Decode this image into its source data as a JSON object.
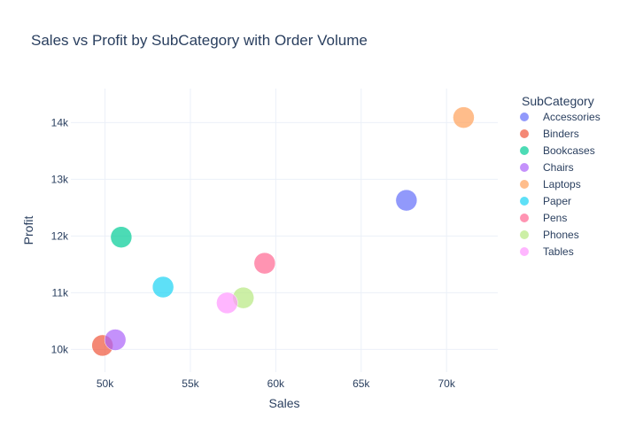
{
  "chart_data": {
    "type": "scatter",
    "title": "Sales vs Profit by SubCategory with Order Volume",
    "xlabel": "Sales",
    "ylabel": "Profit",
    "legend_title": "SubCategory",
    "legend_position": "right",
    "grid": true,
    "xlim": [
      48000,
      73000
    ],
    "ylim": [
      9600,
      14600
    ],
    "x_ticks": [
      50000,
      55000,
      60000,
      65000,
      70000
    ],
    "x_tick_labels": [
      "50k",
      "55k",
      "60k",
      "65k",
      "70k"
    ],
    "y_ticks": [
      10000,
      11000,
      12000,
      13000,
      14000
    ],
    "y_tick_labels": [
      "10k",
      "11k",
      "12k",
      "13k",
      "14k"
    ],
    "series": [
      {
        "name": "Accessories",
        "color": "#636efa",
        "x": 67650,
        "y": 12630
      },
      {
        "name": "Binders",
        "color": "#ef553b",
        "x": 49850,
        "y": 10070
      },
      {
        "name": "Bookcases",
        "color": "#00cc96",
        "x": 50950,
        "y": 11980
      },
      {
        "name": "Chairs",
        "color": "#ab63fa",
        "x": 50600,
        "y": 10170
      },
      {
        "name": "Laptops",
        "color": "#ffa15a",
        "x": 71000,
        "y": 14090
      },
      {
        "name": "Paper",
        "color": "#19d3f3",
        "x": 53400,
        "y": 11100
      },
      {
        "name": "Pens",
        "color": "#ff6692",
        "x": 59350,
        "y": 11520
      },
      {
        "name": "Phones",
        "color": "#b6e880",
        "x": 58100,
        "y": 10910
      },
      {
        "name": "Tables",
        "color": "#ff97ff",
        "x": 57150,
        "y": 10820
      }
    ]
  }
}
